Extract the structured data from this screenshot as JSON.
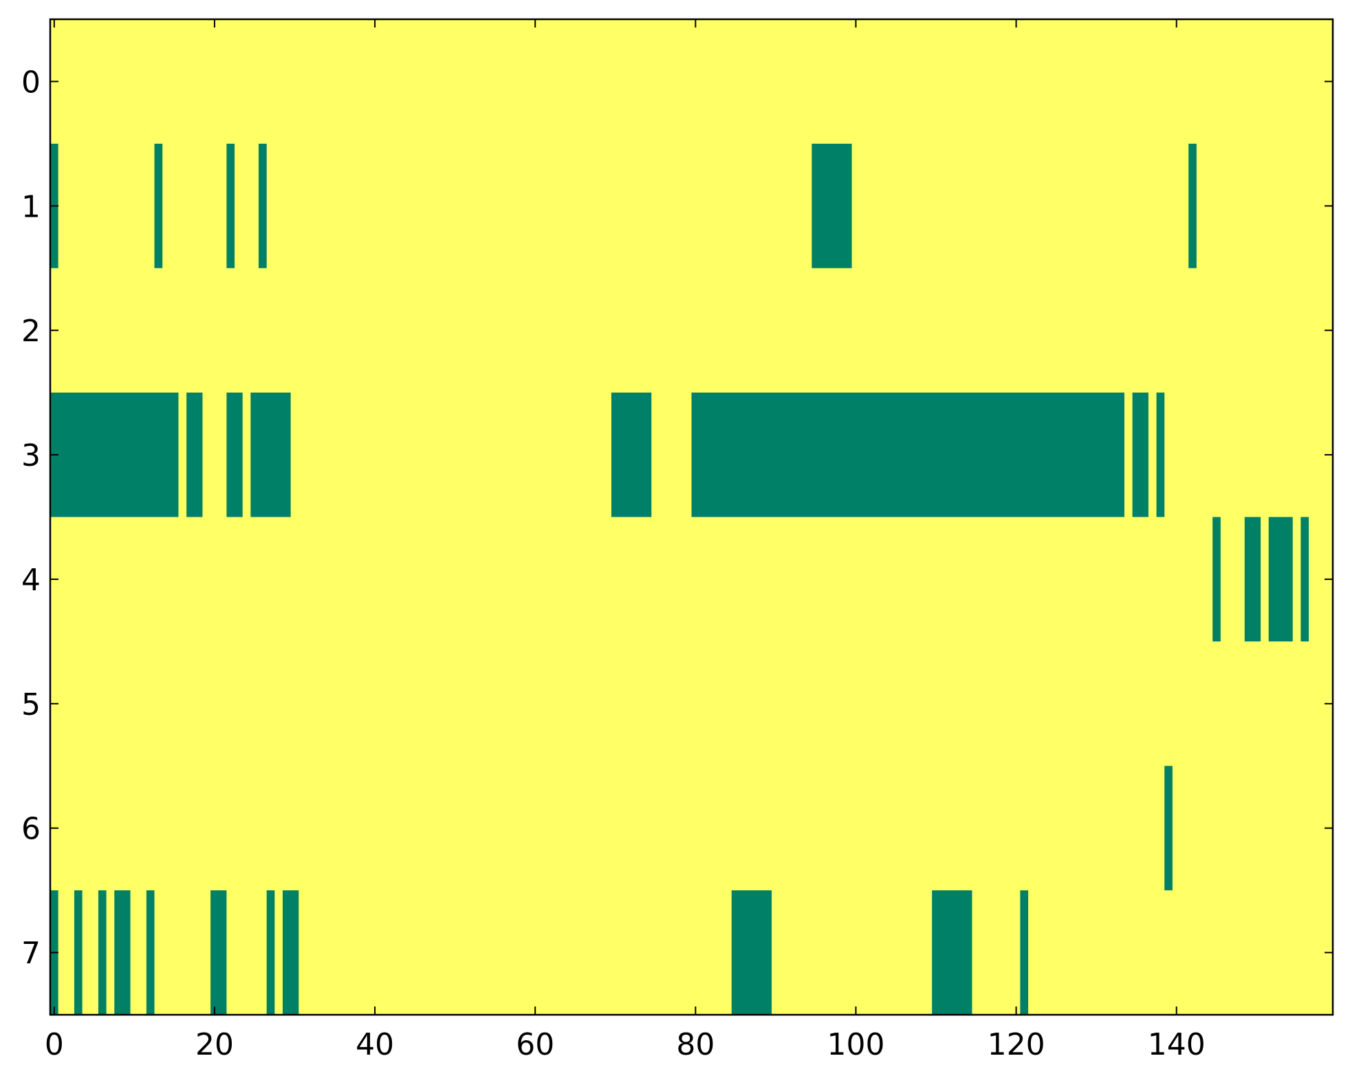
{
  "chart_data": {
    "type": "heatmap",
    "title": "",
    "xlabel": "",
    "ylabel": "",
    "n_columns": 160,
    "n_rows": 8,
    "xlim": [
      -0.5,
      159.5
    ],
    "ylim": [
      7.5,
      -0.5
    ],
    "x_ticks": [
      0,
      20,
      40,
      60,
      80,
      100,
      120,
      140
    ],
    "x_tick_labels": [
      "0",
      "20",
      "40",
      "60",
      "80",
      "100",
      "120",
      "140"
    ],
    "y_ticks": [
      0,
      1,
      2,
      3,
      4,
      5,
      6,
      7
    ],
    "y_tick_labels": [
      "0",
      "1",
      "2",
      "3",
      "4",
      "5",
      "6",
      "7"
    ],
    "background_color": "#ffff66",
    "mark_color": "#008066",
    "grid": false,
    "legend": "none",
    "rows": [
      {
        "row": 0,
        "runs": []
      },
      {
        "row": 1,
        "runs": [
          [
            0,
            0
          ],
          [
            13,
            13
          ],
          [
            22,
            22
          ],
          [
            26,
            26
          ],
          [
            95,
            99
          ],
          [
            142,
            142
          ]
        ]
      },
      {
        "row": 2,
        "runs": []
      },
      {
        "row": 3,
        "runs": [
          [
            0,
            15
          ],
          [
            17,
            18
          ],
          [
            22,
            23
          ],
          [
            25,
            29
          ],
          [
            70,
            74
          ],
          [
            80,
            133
          ],
          [
            135,
            136
          ],
          [
            138,
            138
          ]
        ]
      },
      {
        "row": 4,
        "runs": [
          [
            145,
            145
          ],
          [
            149,
            150
          ],
          [
            152,
            154
          ],
          [
            156,
            156
          ]
        ]
      },
      {
        "row": 5,
        "runs": []
      },
      {
        "row": 6,
        "runs": [
          [
            139,
            139
          ]
        ]
      },
      {
        "row": 7,
        "runs": [
          [
            0,
            0
          ],
          [
            3,
            3
          ],
          [
            6,
            6
          ],
          [
            8,
            9
          ],
          [
            12,
            12
          ],
          [
            20,
            21
          ],
          [
            27,
            27
          ],
          [
            29,
            30
          ],
          [
            85,
            89
          ],
          [
            110,
            114
          ],
          [
            121,
            121
          ]
        ]
      }
    ]
  }
}
